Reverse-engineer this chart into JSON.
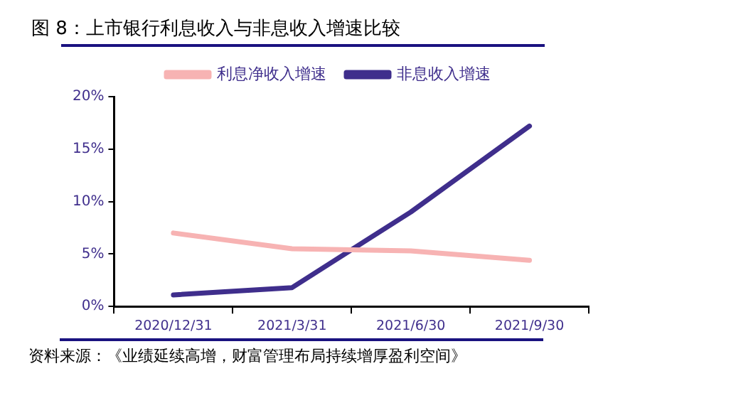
{
  "chart_data": {
    "type": "line",
    "title": "图 8：上市银行利息收入与非息收入增速比较",
    "categories": [
      "2020/12/31",
      "2021/3/31",
      "2021/6/30",
      "2021/9/30"
    ],
    "series": [
      {
        "name": "利息净收入增速",
        "color": "#f7b3b3",
        "values": [
          7.0,
          5.5,
          5.3,
          4.4
        ]
      },
      {
        "name": "非息收入增速",
        "color": "#3f2e8c",
        "values": [
          1.1,
          1.8,
          9.0,
          17.2
        ]
      }
    ],
    "ylim": [
      0,
      20
    ],
    "yticks": [
      {
        "value": 0,
        "label": "0%"
      },
      {
        "value": 5,
        "label": "5%"
      },
      {
        "value": 10,
        "label": "10%"
      },
      {
        "value": 15,
        "label": "15%"
      },
      {
        "value": 20,
        "label": "20%"
      }
    ],
    "grid": false,
    "legend": "top",
    "marker": "none",
    "line_style": "solid",
    "annotations": [
      "资料来源：《业绩延续高增，财富管理布局持续增厚盈利空间》"
    ]
  }
}
